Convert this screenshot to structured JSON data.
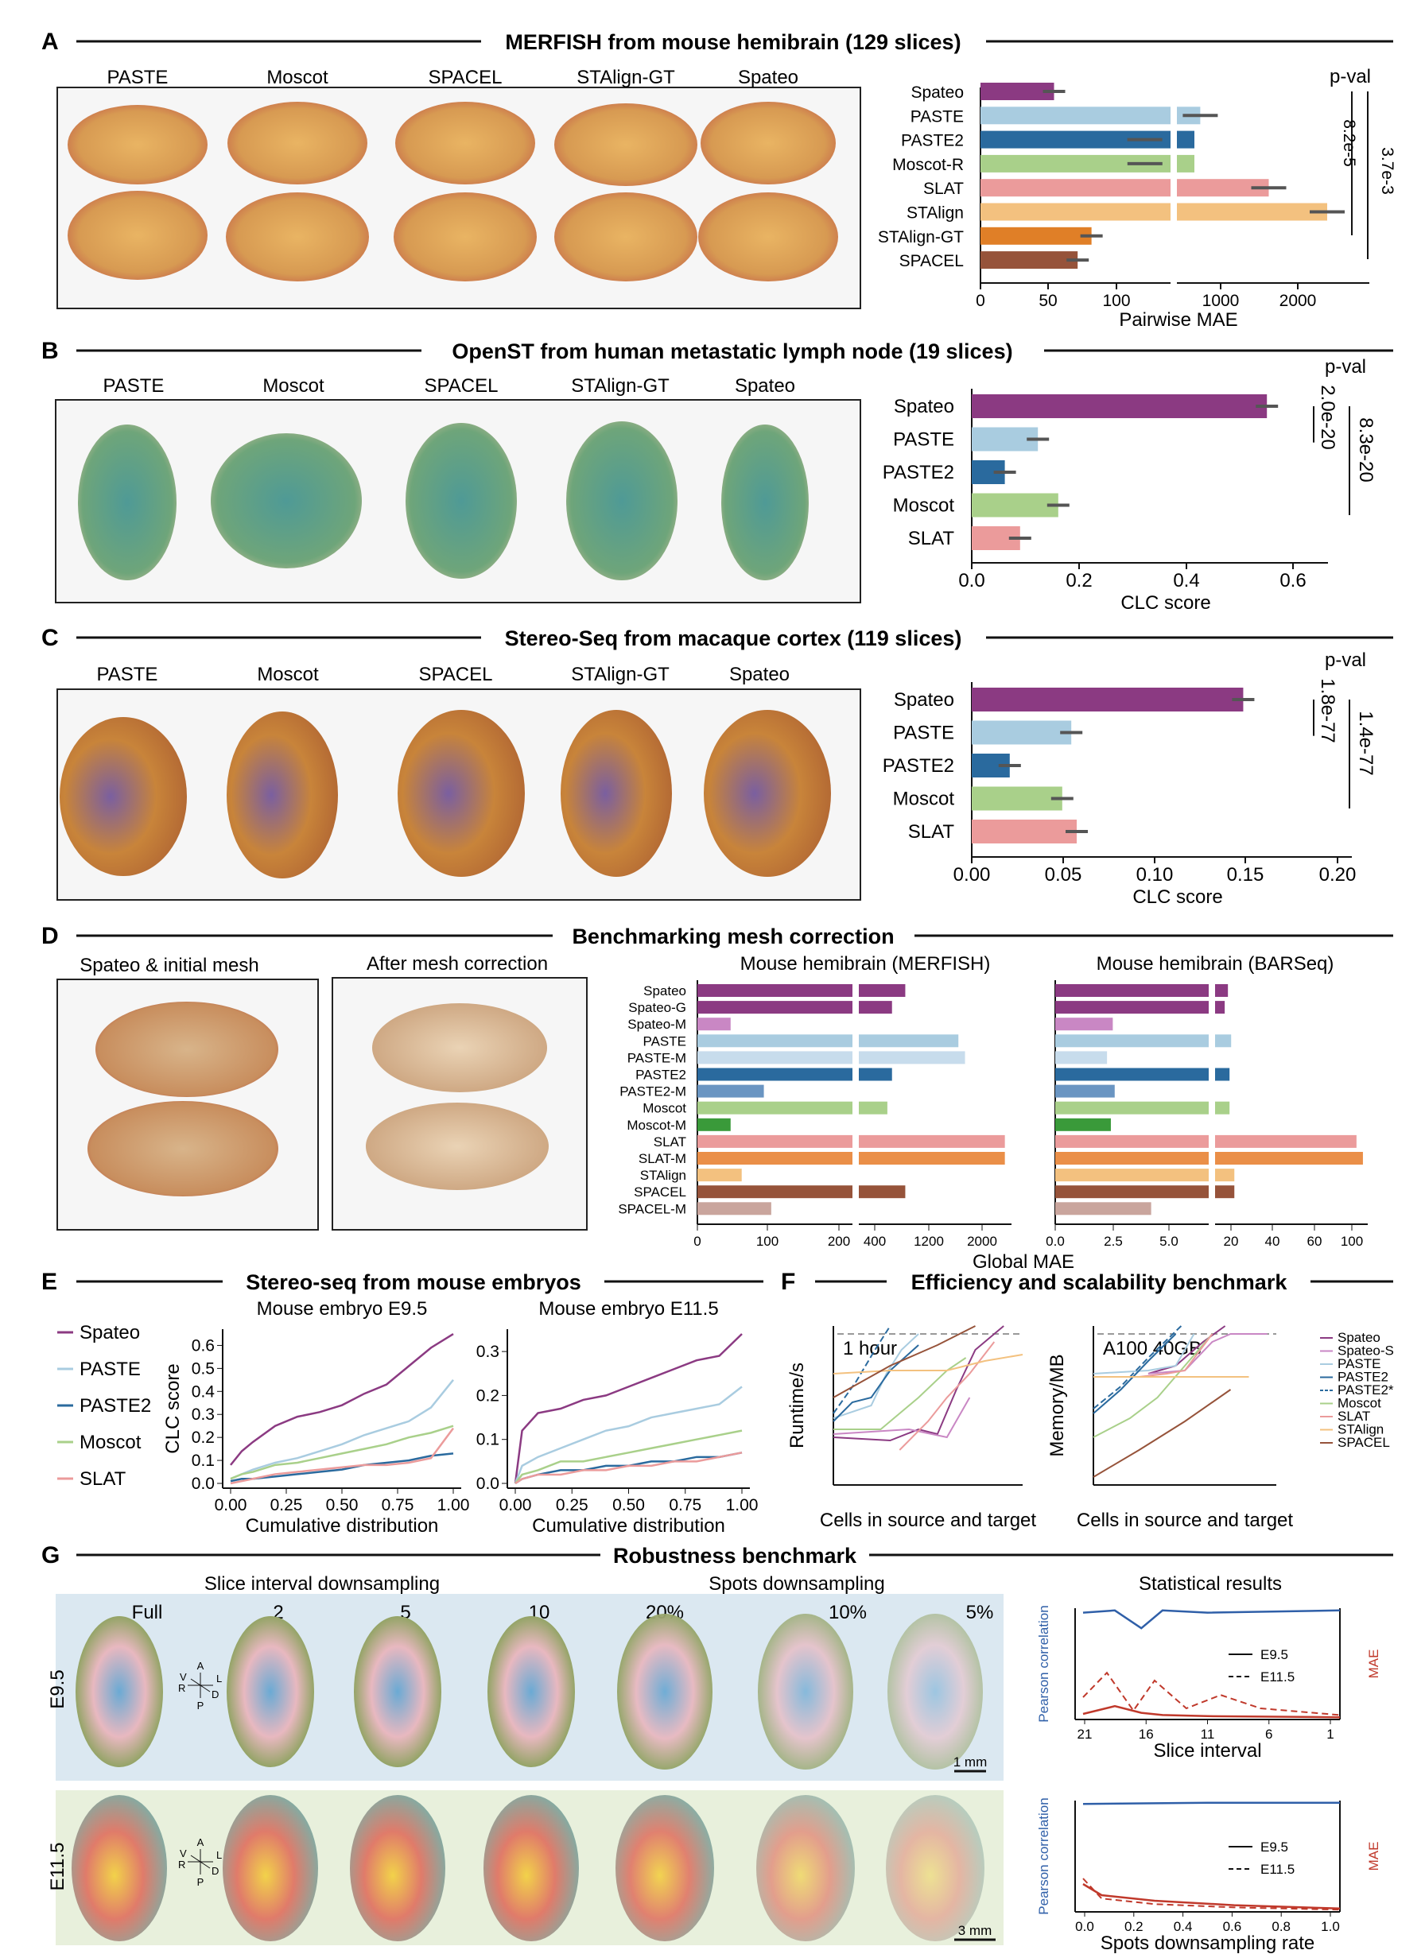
{
  "colors": {
    "spateo": "#8b3a82",
    "spateo_light": "#c987c4",
    "paste": "#a9cce0",
    "paste_m": "#c7dcec",
    "paste2": "#2a6a9e",
    "moscot": "#a9d08a",
    "moscot_m": "#3a9a3a",
    "slat": "#eb9b9b",
    "stalign": "#f3c17f",
    "stalign_gt": "#e07f27",
    "spacel": "#96533a",
    "slat_dark": "#cf5a2a",
    "slat_m": "#ea8f48",
    "spacel_m": "#c9a59d",
    "red": "#c0392b",
    "blue": "#2f5fa8",
    "orange": "#f0a040"
  },
  "panelA": {
    "letter": "A",
    "title": "MERFISH from mouse hemibrain (129 slices)",
    "methods": [
      "PASTE",
      "Moscot",
      "SPACEL",
      "STAlign-GT",
      "Spateo"
    ]
  },
  "panelB": {
    "letter": "B",
    "title": "OpenST from human metastatic lymph node (19 slices)",
    "methods": [
      "PASTE",
      "Moscot",
      "SPACEL",
      "STAlign-GT",
      "Spateo"
    ]
  },
  "panelC": {
    "letter": "C",
    "title": "Stereo-Seq from macaque cortex (119 slices)",
    "methods": [
      "PASTE",
      "Moscot",
      "SPACEL",
      "STAlign-GT",
      "Spateo"
    ]
  },
  "panelD": {
    "letter": "D",
    "title": "Benchmarking mesh correction",
    "img1": "Spateo & initial mesh",
    "img2": "After mesh correction"
  },
  "panelE": {
    "letter": "E",
    "title": "Stereo-seq from mouse embryos"
  },
  "panelF": {
    "letter": "F",
    "title": "Efficiency and scalability benchmark"
  },
  "panelG": {
    "letter": "G",
    "title": "Robustness benchmark",
    "slice_title": "Slice interval downsampling",
    "spots_title": "Spots downsampling",
    "stats_title": "Statistical results",
    "slice_labels": [
      "Full",
      "2",
      "5",
      "10"
    ],
    "spot_labels": [
      "20%",
      "10%",
      "5%"
    ],
    "row1": "E9.5",
    "row2": "E11.5",
    "scale1": "1 mm",
    "scale2": "3 mm",
    "axes_glyph": [
      "A",
      "V",
      "L",
      "R",
      "D",
      "P"
    ]
  },
  "chart_data": [
    {
      "type": "bar",
      "orientation": "horizontal",
      "title": "",
      "categories": [
        "Spateo",
        "PASTE",
        "PASTE2",
        "Moscot-R",
        "SLAT",
        "STAlign",
        "STAlign-GT",
        "SPACEL"
      ],
      "values": [
        53,
        780,
        115,
        117,
        1600,
        2300,
        80,
        70
      ],
      "xlabel": "Pairwise MAE",
      "xticks": [
        "0",
        "50",
        "100",
        "1000",
        "2000"
      ],
      "axis_break": true,
      "pvalue_title": "p-val",
      "pvalues": [
        "8.2e-5",
        "3.7e-3"
      ]
    },
    {
      "type": "bar",
      "orientation": "horizontal",
      "categories": [
        "Spateo",
        "PASTE",
        "PASTE2",
        "Moscot",
        "SLAT"
      ],
      "values": [
        0.58,
        0.13,
        0.065,
        0.17,
        0.095
      ],
      "xlabel": "CLC score",
      "xticks": [
        "0.0",
        "0.2",
        "0.4",
        "0.6"
      ],
      "xlim": [
        0,
        0.7
      ],
      "pvalue_title": "p-val",
      "pvalues": [
        "2.0e-20",
        "8.3e-20"
      ]
    },
    {
      "type": "bar",
      "orientation": "horizontal",
      "categories": [
        "Spateo",
        "PASTE",
        "PASTE2",
        "Moscot",
        "SLAT"
      ],
      "values": [
        0.15,
        0.055,
        0.021,
        0.05,
        0.058
      ],
      "xlabel": "CLC score",
      "xticks": [
        "0.00",
        "0.05",
        "0.10",
        "0.15",
        "0.20"
      ],
      "xlim": [
        0,
        0.21
      ],
      "pvalue_title": "p-val",
      "pvalues": [
        "1.8e-77",
        "1.4e-77"
      ]
    },
    {
      "type": "bar",
      "orientation": "horizontal",
      "title": "Mouse hemibrain (MERFISH)",
      "categories": [
        "Spateo",
        "Spateo-G",
        "Spateo-M",
        "PASTE",
        "PASTE-M",
        "PASTE2",
        "PASTE2-M",
        "Moscot",
        "Moscot-M",
        "SLAT",
        "SLAT-M",
        "STAlign",
        "SPACEL",
        "SPACEL-M"
      ],
      "values": [
        1000,
        800,
        45,
        1800,
        1900,
        800,
        90,
        730,
        45,
        2500,
        2500,
        60,
        1000,
        100
      ],
      "xlabel": "Global MAE",
      "xticks": [
        "0",
        "100",
        "200",
        "400",
        "1200",
        "2000"
      ],
      "axis_break": true
    },
    {
      "type": "bar",
      "orientation": "horizontal",
      "title": "Mouse hemibrain (BARSeq)",
      "categories": [
        "Spateo",
        "Spateo-G",
        "Spateo-M",
        "PASTE",
        "PASTE-M",
        "PASTE2",
        "PASTE2-M",
        "Moscot",
        "Moscot-M",
        "SLAT",
        "SLAT-M",
        "STAlign",
        "SPACEL",
        "SPACEL-M"
      ],
      "values": [
        18,
        16,
        3,
        20,
        2.7,
        19,
        3.1,
        19,
        2.9,
        98,
        102,
        22,
        22,
        5
      ],
      "xticks": [
        "0.0",
        "2.5",
        "5.0",
        "20",
        "40",
        "60",
        "100"
      ],
      "axis_break": true
    },
    {
      "type": "line",
      "title": "Mouse embryo E9.5",
      "xlabel": "Cumulative distribution",
      "ylabel": "CLC score",
      "xlim": [
        0,
        1
      ],
      "ylim": [
        0,
        0.65
      ],
      "x": [
        0,
        0.05,
        0.1,
        0.2,
        0.3,
        0.4,
        0.5,
        0.6,
        0.7,
        0.8,
        0.9,
        1.0
      ],
      "series": [
        {
          "name": "Spateo",
          "values": [
            0.08,
            0.14,
            0.18,
            0.25,
            0.29,
            0.31,
            0.34,
            0.39,
            0.43,
            0.51,
            0.59,
            0.65
          ]
        },
        {
          "name": "PASTE",
          "values": [
            0.02,
            0.04,
            0.06,
            0.09,
            0.11,
            0.14,
            0.17,
            0.21,
            0.24,
            0.27,
            0.33,
            0.45
          ]
        },
        {
          "name": "PASTE2",
          "values": [
            0.01,
            0.02,
            0.02,
            0.03,
            0.04,
            0.05,
            0.06,
            0.08,
            0.09,
            0.1,
            0.12,
            0.13
          ]
        },
        {
          "name": "Moscot",
          "values": [
            0.02,
            0.04,
            0.05,
            0.08,
            0.09,
            0.11,
            0.13,
            0.15,
            0.17,
            0.2,
            0.22,
            0.25
          ]
        },
        {
          "name": "SLAT",
          "values": [
            0.0,
            0.01,
            0.02,
            0.04,
            0.05,
            0.06,
            0.07,
            0.08,
            0.08,
            0.09,
            0.11,
            0.24
          ]
        }
      ],
      "xticks": [
        "0.00",
        "0.25",
        "0.50",
        "0.75",
        "1.00"
      ],
      "yticks": [
        "0.0",
        "0.1",
        "0.2",
        "0.3",
        "0.4",
        "0.5",
        "0.6"
      ]
    },
    {
      "type": "line",
      "title": "Mouse embryo E11.5",
      "xlabel": "Cumulative distribution",
      "ylim": [
        0,
        0.34
      ],
      "x": [
        0,
        0.03,
        0.1,
        0.2,
        0.3,
        0.4,
        0.5,
        0.6,
        0.7,
        0.8,
        0.9,
        1.0
      ],
      "series": [
        {
          "name": "Spateo",
          "values": [
            0.0,
            0.12,
            0.16,
            0.17,
            0.19,
            0.2,
            0.22,
            0.24,
            0.26,
            0.28,
            0.29,
            0.34
          ]
        },
        {
          "name": "PASTE",
          "values": [
            0.0,
            0.04,
            0.06,
            0.08,
            0.1,
            0.12,
            0.13,
            0.15,
            0.16,
            0.17,
            0.18,
            0.22
          ]
        },
        {
          "name": "PASTE2",
          "values": [
            0.0,
            0.01,
            0.02,
            0.03,
            0.03,
            0.04,
            0.04,
            0.05,
            0.05,
            0.06,
            0.06,
            0.07
          ]
        },
        {
          "name": "Moscot",
          "values": [
            0.0,
            0.02,
            0.03,
            0.05,
            0.05,
            0.06,
            0.07,
            0.08,
            0.09,
            0.1,
            0.11,
            0.12
          ]
        },
        {
          "name": "SLAT",
          "values": [
            0.0,
            0.01,
            0.02,
            0.02,
            0.03,
            0.03,
            0.04,
            0.04,
            0.05,
            0.05,
            0.06,
            0.07
          ]
        }
      ],
      "xticks": [
        "0.00",
        "0.25",
        "0.50",
        "0.75",
        "1.00"
      ],
      "yticks": [
        "0.0",
        "0.1",
        "0.2",
        "0.3"
      ]
    },
    {
      "type": "line",
      "title": "",
      "xlabel": "Cells in source and target",
      "ylabel": "Runtime/s",
      "log": true,
      "annotation": "1 hour",
      "series": [
        "Spateo",
        "Spateo-S",
        "PASTE",
        "PASTE2",
        "PASTE2*",
        "Moscot",
        "SLAT",
        "STAlign",
        "SPACEL"
      ]
    },
    {
      "type": "line",
      "title": "",
      "xlabel": "Cells in source and target",
      "ylabel": "Memory/MB",
      "log": true,
      "annotation": "A100 40GB",
      "series": [
        "Spateo",
        "Spateo-S",
        "PASTE",
        "PASTE2",
        "PASTE2*",
        "Moscot",
        "SLAT",
        "STAlign",
        "SPACEL"
      ]
    },
    {
      "type": "line",
      "xlabel": "Slice interval",
      "ylabel": "Pearson correlation",
      "y2label": "MAE",
      "xticks": [
        "21",
        "16",
        "11",
        "6",
        "1"
      ],
      "series": [
        {
          "name": "E9.5"
        },
        {
          "name": "E11.5"
        }
      ]
    },
    {
      "type": "line",
      "xlabel": "Spots downsampling rate",
      "ylabel": "Pearson correlation",
      "y2label": "MAE",
      "xticks": [
        "0.0",
        "0.2",
        "0.4",
        "0.6",
        "0.8",
        "1.0"
      ],
      "series": [
        {
          "name": "E9.5"
        },
        {
          "name": "E11.5"
        }
      ]
    }
  ]
}
